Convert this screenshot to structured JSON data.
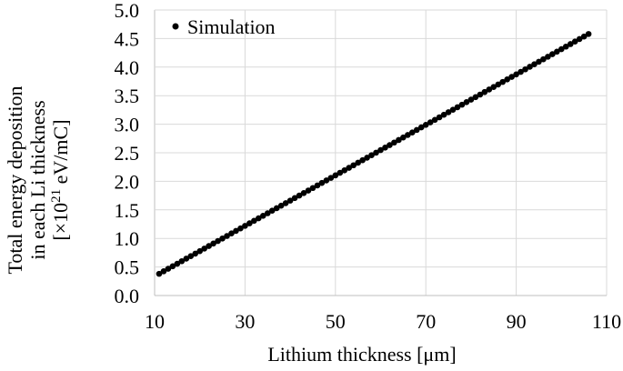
{
  "chart_data": {
    "type": "scatter",
    "xlabel": "Lithium thickness [μm]",
    "ylabel_lines": [
      "Total energy deposition",
      "in each Li thickness"
    ],
    "ylabel_unit_prefix": "[×10",
    "ylabel_unit_exp": "21",
    "ylabel_unit_suffix": " eV/mC]",
    "xlim": [
      10,
      110
    ],
    "ylim": [
      0,
      5
    ],
    "x_ticks": [
      "10",
      "30",
      "50",
      "70",
      "90",
      "110"
    ],
    "y_ticks": [
      "0.0",
      "0.5",
      "1.0",
      "1.5",
      "2.0",
      "2.5",
      "3.0",
      "3.5",
      "4.0",
      "4.5",
      "5.0"
    ],
    "grid": "vertical-and-horizontal",
    "legend_position": "top-left",
    "series": [
      {
        "name": "Simulation",
        "color": "#000000",
        "x_start": 11,
        "x_end": 106,
        "x_step": 1,
        "y_start": 0.38,
        "y_end": 4.58
      }
    ]
  }
}
